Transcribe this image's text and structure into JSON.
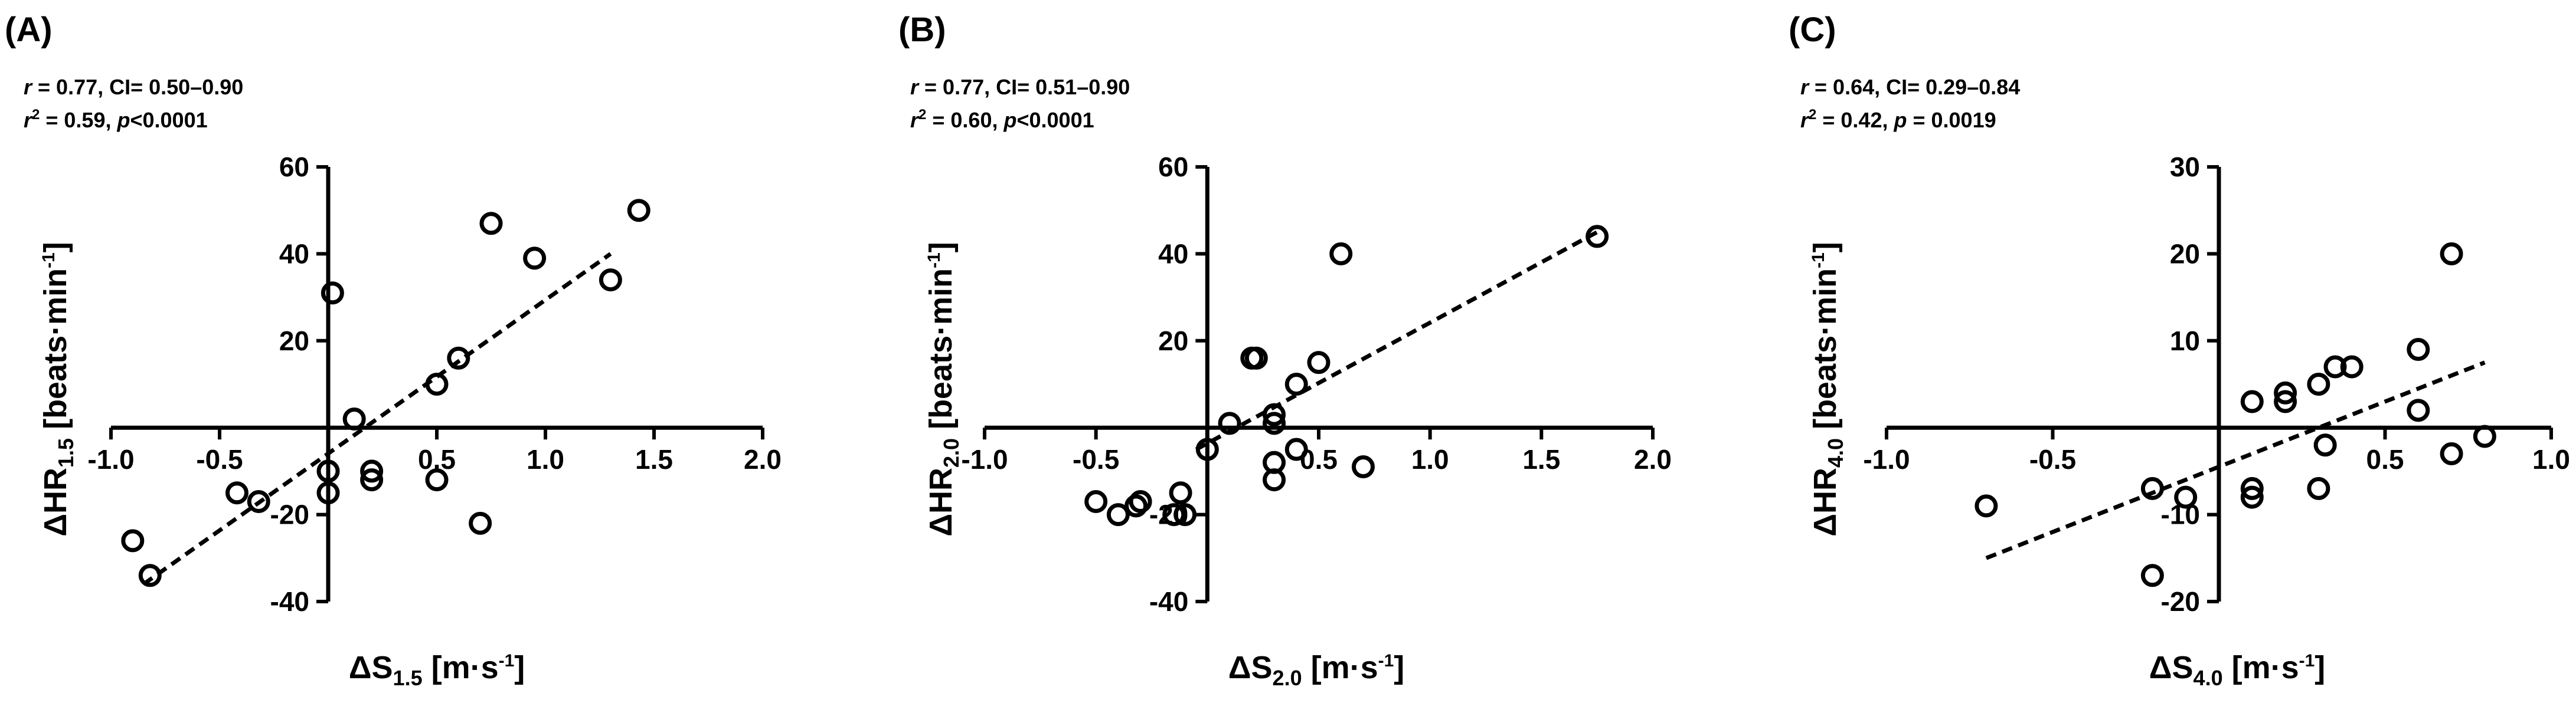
{
  "chart_data": [
    {
      "type": "scatter",
      "panel_label": "(A)",
      "stats": {
        "line1": {
          "r": "r",
          "r_eq": " = 0.77, CI= 0.50–0.90"
        },
        "line2": {
          "r": "r",
          "sup": "2",
          "r2_eq": " = 0.59, ",
          "p": "p",
          "p_eq": "<0.0001"
        }
      },
      "xlabel": {
        "main": "ΔS",
        "sub": "1.5",
        "unit_a": " [m·s",
        "unit_sup": "-1",
        "unit_b": "]"
      },
      "ylabel": {
        "main": "ΔHR",
        "sub": "1.5",
        "unit_a": " [beats·min",
        "unit_sup": "-1",
        "unit_b": "]"
      },
      "xlim": [
        -1.0,
        2.0
      ],
      "ylim": [
        -40,
        60
      ],
      "xticks": [
        -1.0,
        -0.5,
        0.5,
        1.0,
        1.5,
        2.0
      ],
      "xtick_labels": [
        "-1.0",
        "-0.5",
        "0.5",
        "1.0",
        "1.5",
        "2.0"
      ],
      "yticks": [
        -40,
        -20,
        20,
        40,
        60
      ],
      "ytick_labels": [
        "-40",
        "-20",
        "20",
        "40",
        "60"
      ],
      "points": [
        {
          "x": -0.9,
          "y": -26
        },
        {
          "x": -0.82,
          "y": -34
        },
        {
          "x": -0.42,
          "y": -15
        },
        {
          "x": -0.32,
          "y": -17
        },
        {
          "x": 0.0,
          "y": -15
        },
        {
          "x": 0.0,
          "y": -10
        },
        {
          "x": 0.02,
          "y": 31
        },
        {
          "x": 0.12,
          "y": 2
        },
        {
          "x": 0.2,
          "y": -10
        },
        {
          "x": 0.2,
          "y": -12
        },
        {
          "x": 0.5,
          "y": -12
        },
        {
          "x": 0.5,
          "y": 10
        },
        {
          "x": 0.6,
          "y": 16
        },
        {
          "x": 0.7,
          "y": -22
        },
        {
          "x": 0.75,
          "y": 47
        },
        {
          "x": 0.95,
          "y": 39
        },
        {
          "x": 1.3,
          "y": 34
        },
        {
          "x": 1.43,
          "y": 50
        }
      ],
      "fit_line": {
        "x": [
          -0.85,
          1.3
        ],
        "y": [
          -36,
          40
        ]
      }
    },
    {
      "type": "scatter",
      "panel_label": "(B)",
      "stats": {
        "line1": {
          "r": "r",
          "r_eq": " = 0.77, CI= 0.51–0.90"
        },
        "line2": {
          "r": "r",
          "sup": "2",
          "r2_eq": " = 0.60, ",
          "p": "p",
          "p_eq": "<0.0001"
        }
      },
      "xlabel": {
        "main": "ΔS",
        "sub": "2.0",
        "unit_a": " [m·s",
        "unit_sup": "-1",
        "unit_b": "]"
      },
      "ylabel": {
        "main": "ΔHR",
        "sub": "2.0",
        "unit_a": " [beats·min",
        "unit_sup": "-1",
        "unit_b": "]"
      },
      "xlim": [
        -1.0,
        2.0
      ],
      "ylim": [
        -40,
        60
      ],
      "xticks": [
        -1.0,
        -0.5,
        0.5,
        1.0,
        1.5,
        2.0
      ],
      "xtick_labels": [
        "-1.0",
        "-0.5",
        "0.5",
        "1.0",
        "1.5",
        "2.0"
      ],
      "yticks": [
        -40,
        -20,
        20,
        40,
        60
      ],
      "ytick_labels": [
        "-40",
        "-20",
        "20",
        "40",
        "60"
      ],
      "points": [
        {
          "x": -0.5,
          "y": -17
        },
        {
          "x": -0.4,
          "y": -20
        },
        {
          "x": -0.32,
          "y": -18
        },
        {
          "x": -0.3,
          "y": -17
        },
        {
          "x": -0.15,
          "y": -20
        },
        {
          "x": -0.12,
          "y": -15
        },
        {
          "x": -0.1,
          "y": -20
        },
        {
          "x": 0.0,
          "y": -5
        },
        {
          "x": 0.1,
          "y": 1
        },
        {
          "x": 0.2,
          "y": 16
        },
        {
          "x": 0.22,
          "y": 16
        },
        {
          "x": 0.3,
          "y": 3
        },
        {
          "x": 0.3,
          "y": 1
        },
        {
          "x": 0.3,
          "y": -8
        },
        {
          "x": 0.3,
          "y": -12
        },
        {
          "x": 0.4,
          "y": 10
        },
        {
          "x": 0.4,
          "y": -5
        },
        {
          "x": 0.5,
          "y": 15
        },
        {
          "x": 0.6,
          "y": 40
        },
        {
          "x": 0.7,
          "y": -9
        },
        {
          "x": 1.75,
          "y": 44
        }
      ],
      "fit_line": {
        "x": [
          -0.05,
          1.75
        ],
        "y": [
          -5,
          45
        ]
      }
    },
    {
      "type": "scatter",
      "panel_label": "(C)",
      "stats": {
        "line1": {
          "r": "r",
          "r_eq": " = 0.64, CI= 0.29–0.84"
        },
        "line2": {
          "r": "r",
          "sup": "2",
          "r2_eq": " = 0.42, ",
          "p": "p",
          "p_eq": " = 0.0019"
        }
      },
      "xlabel": {
        "main": "ΔS",
        "sub": "4.0",
        "unit_a": " [m·s",
        "unit_sup": "-1",
        "unit_b": "]"
      },
      "ylabel": {
        "main": "ΔHR",
        "sub": "4.0",
        "unit_a": " [beats·min",
        "unit_sup": "-1",
        "unit_b": "]"
      },
      "xlim": [
        -1.0,
        1.0
      ],
      "ylim": [
        -20,
        30
      ],
      "xticks": [
        -1.0,
        -0.5,
        0.5,
        1.0
      ],
      "xtick_labels": [
        "-1.0",
        "-0.5",
        "0.5",
        "1.0"
      ],
      "yticks": [
        -20,
        -10,
        10,
        20,
        30
      ],
      "ytick_labels": [
        "-20",
        "-10",
        "10",
        "20",
        "30"
      ],
      "points": [
        {
          "x": -0.7,
          "y": -9
        },
        {
          "x": -0.2,
          "y": -7
        },
        {
          "x": -0.2,
          "y": -17
        },
        {
          "x": -0.1,
          "y": -8
        },
        {
          "x": 0.1,
          "y": 3
        },
        {
          "x": 0.1,
          "y": -7
        },
        {
          "x": 0.1,
          "y": -8
        },
        {
          "x": 0.2,
          "y": 4
        },
        {
          "x": 0.2,
          "y": 3
        },
        {
          "x": 0.3,
          "y": 5
        },
        {
          "x": 0.3,
          "y": -7
        },
        {
          "x": 0.32,
          "y": -2
        },
        {
          "x": 0.35,
          "y": 7
        },
        {
          "x": 0.4,
          "y": 7
        },
        {
          "x": 0.6,
          "y": 9
        },
        {
          "x": 0.6,
          "y": 2
        },
        {
          "x": 0.7,
          "y": 20
        },
        {
          "x": 0.7,
          "y": -3
        },
        {
          "x": 0.8,
          "y": -1
        }
      ],
      "fit_line": {
        "x": [
          -0.7,
          0.8
        ],
        "y": [
          -15,
          7.5
        ]
      }
    }
  ]
}
